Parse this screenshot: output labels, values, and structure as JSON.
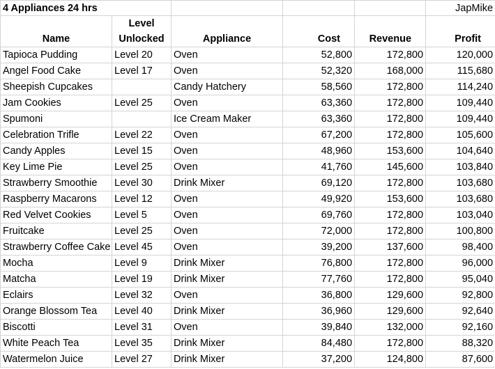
{
  "sheet": {
    "title": "4 Appliances 24 hrs",
    "author": "JapMike",
    "columns": [
      "Name",
      "Level Unlocked",
      "Appliance",
      "Cost",
      "Revenue",
      "Profit"
    ],
    "rows": [
      [
        "Tapioca Pudding",
        "Level 20",
        "Oven",
        "52,800",
        "172,800",
        "120,000"
      ],
      [
        "Angel Food Cake",
        "Level 17",
        "Oven",
        "52,320",
        "168,000",
        "115,680"
      ],
      [
        "Sheepish Cupcakes",
        null,
        "Candy Hatchery",
        "58,560",
        "172,800",
        "114,240"
      ],
      [
        "Jam Cookies",
        "Level 25",
        "Oven",
        "63,360",
        "172,800",
        "109,440"
      ],
      [
        "Spumoni",
        null,
        "Ice Cream Maker",
        "63,360",
        "172,800",
        "109,440"
      ],
      [
        "Celebration Trifle",
        "Level 22",
        "Oven",
        "67,200",
        "172,800",
        "105,600"
      ],
      [
        "Candy Apples",
        "Level 15",
        "Oven",
        "48,960",
        "153,600",
        "104,640"
      ],
      [
        "Key Lime Pie",
        "Level 25",
        "Oven",
        "41,760",
        "145,600",
        "103,840"
      ],
      [
        "Strawberry Smoothie",
        "Level 30",
        "Drink Mixer",
        "69,120",
        "172,800",
        "103,680"
      ],
      [
        "Raspberry Macarons",
        "Level 12",
        "Oven",
        "49,920",
        "153,600",
        "103,680"
      ],
      [
        "Red Velvet Cookies",
        "Level 5",
        "Oven",
        "69,760",
        "172,800",
        "103,040"
      ],
      [
        "Fruitcake",
        "Level 25",
        "Oven",
        "72,000",
        "172,800",
        "100,800"
      ],
      [
        "Strawberry Coffee Cake",
        "Level 45",
        "Oven",
        "39,200",
        "137,600",
        "98,400"
      ],
      [
        "Mocha",
        "Level 9",
        "Drink Mixer",
        "76,800",
        "172,800",
        "96,000"
      ],
      [
        "Matcha",
        "Level 19",
        "Drink Mixer",
        "77,760",
        "172,800",
        "95,040"
      ],
      [
        "Eclairs",
        "Level 32",
        "Oven",
        "36,800",
        "129,600",
        "92,800"
      ],
      [
        "Orange Blossom Tea",
        "Level 40",
        "Drink Mixer",
        "36,960",
        "129,600",
        "92,640"
      ],
      [
        "Biscotti",
        "Level 31",
        "Oven",
        "39,840",
        "132,000",
        "92,160"
      ],
      [
        "White Peach Tea",
        "Level 35",
        "Drink Mixer",
        "84,480",
        "172,800",
        "88,320"
      ],
      [
        "Watermelon Juice",
        "Level 27",
        "Drink Mixer",
        "37,200",
        "124,800",
        "87,600"
      ]
    ]
  }
}
